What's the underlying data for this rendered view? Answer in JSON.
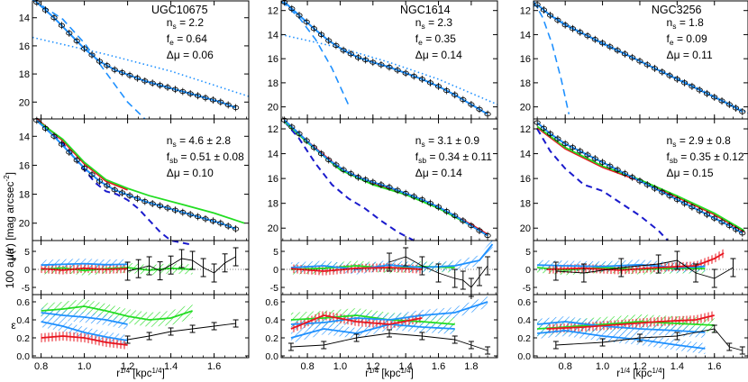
{
  "figure": {
    "ylabel_main": "μ(r)  [mag arcsec",
    "ylabel_main_sup": "-2",
    "ylabel_main_end": "]",
    "ylabel_a4_prefix": "100 a",
    "ylabel_a4_sub": "4",
    "ylabel_a4_suffix": "/a",
    "ylabel_eps": "ε",
    "xlabel_prefix": "r",
    "xlabel_sup": "1/4",
    "xlabel_mid": " [kpc",
    "xlabel_sup2": "1/4",
    "xlabel_end": "]"
  },
  "colors": {
    "data": "#000000",
    "fit": "#1e90ff",
    "sersic": "#1e90ff",
    "model_blue": "#1e90ff",
    "model_red": "#e8141e",
    "model_green": "#22dd22",
    "model_navy": "#1a1acc"
  },
  "chart_data": [
    {
      "type": "line",
      "galaxy": "UGC10675",
      "top_stats": [
        {
          "key": "n",
          "sub": "s",
          "val": " = 2.2"
        },
        {
          "key": "f",
          "sub": "e",
          "val": " = 0.64"
        },
        {
          "key": "Δμ",
          "sub": "",
          "val": " = 0.06"
        }
      ],
      "mid_stats": [
        {
          "key": "n",
          "sub": "s",
          "val": " = 4.6 ± 2.8"
        },
        {
          "key": "f",
          "sub": "sb",
          "val": " = 0.51 ± 0.08"
        },
        {
          "key": "Δμ",
          "sub": "",
          "val": " = 0.10"
        }
      ],
      "xlim": [
        0.76,
        1.76
      ],
      "xticks": [
        {
          "v": 0.8,
          "t": "0.8"
        },
        {
          "v": 1.0,
          "t": "1.0"
        },
        {
          "v": 1.2,
          "t": "1.2"
        },
        {
          "v": 1.4,
          "t": "1.4"
        },
        {
          "v": 1.6,
          "t": "1.6"
        }
      ],
      "ylim_mu": [
        21.2,
        12.8
      ],
      "yticks_mu": [
        {
          "v": 14,
          "t": "14"
        },
        {
          "v": 16,
          "t": "16"
        },
        {
          "v": 18,
          "t": "18"
        },
        {
          "v": 20,
          "t": "20"
        }
      ],
      "profile": {
        "x": [
          0.78,
          0.86,
          0.93,
          1.0,
          1.07,
          1.14,
          1.21,
          1.28,
          1.35,
          1.42,
          1.49,
          1.56,
          1.63,
          1.7
        ],
        "y": [
          12.9,
          14.0,
          15.1,
          16.2,
          17.1,
          17.7,
          18.1,
          18.5,
          18.8,
          19.1,
          19.4,
          19.7,
          20.0,
          20.4
        ]
      },
      "disk": {
        "x": [
          0.76,
          1.1,
          1.4,
          1.76
        ],
        "y": [
          15.4,
          16.6,
          17.8,
          19.6
        ]
      },
      "bulge": {
        "x": [
          0.76,
          0.9,
          1.0,
          1.1,
          1.2,
          1.28
        ],
        "y": [
          12.7,
          14.1,
          15.8,
          17.9,
          20.0,
          21.2
        ]
      },
      "mid_models": {
        "green": {
          "x": [
            0.78,
            0.9,
            1.0,
            1.1,
            1.2,
            1.3,
            1.45,
            1.6,
            1.74
          ],
          "y": [
            12.9,
            14.2,
            15.8,
            17.0,
            17.6,
            18.1,
            18.7,
            19.3,
            20.0
          ]
        },
        "red": {
          "x": [
            0.78,
            0.9,
            1.0,
            1.1,
            1.2
          ],
          "y": [
            12.8,
            14.3,
            15.9,
            17.1,
            17.7
          ]
        },
        "navy": {
          "x": [
            0.78,
            0.9,
            1.0,
            1.05,
            1.1,
            1.15,
            1.2,
            1.25,
            1.3,
            1.35,
            1.4,
            1.5
          ],
          "y": [
            12.9,
            14.5,
            16.3,
            17.2,
            17.8,
            18.0,
            18.4,
            19.0,
            19.8,
            20.6,
            21.2,
            21.5
          ]
        }
      },
      "a4": {
        "blue": {
          "x": [
            0.8,
            0.9,
            1.0,
            1.1,
            1.2
          ],
          "y": [
            1.2,
            1.4,
            1.6,
            1.3,
            1.4
          ]
        },
        "green": {
          "x": [
            0.8,
            0.9,
            1.0,
            1.1,
            1.2,
            1.3,
            1.4,
            1.5
          ],
          "y": [
            0.0,
            0.4,
            -0.3,
            0.2,
            0.5,
            -0.2,
            0.3,
            0.0
          ]
        },
        "red": {
          "x": [
            0.8,
            0.9,
            1.0,
            1.1,
            1.2
          ],
          "y": [
            0.2,
            -0.2,
            0.3,
            0.0,
            0.2
          ]
        },
        "data": {
          "x": [
            1.2,
            1.25,
            1.3,
            1.35,
            1.4,
            1.45,
            1.5,
            1.55,
            1.6,
            1.65,
            1.7
          ],
          "y": [
            -0.5,
            0.2,
            1.0,
            -0.4,
            1.2,
            3.0,
            2.5,
            0.5,
            -1.0,
            1.8,
            3.5
          ]
        }
      },
      "eps": {
        "blue": {
          "x": [
            0.8,
            0.9,
            1.0,
            1.1,
            1.2
          ],
          "y": [
            0.38,
            0.33,
            0.26,
            0.21,
            0.17
          ]
        },
        "blue2": {
          "x": [
            0.8,
            0.9,
            1.0,
            1.1,
            1.2
          ],
          "y": [
            0.48,
            0.45,
            0.43,
            0.4,
            0.35
          ]
        },
        "green": {
          "x": [
            0.8,
            0.9,
            1.0,
            1.1,
            1.2,
            1.3,
            1.4,
            1.5
          ],
          "y": [
            0.5,
            0.52,
            0.55,
            0.5,
            0.44,
            0.4,
            0.42,
            0.5
          ]
        },
        "red": {
          "x": [
            0.8,
            0.9,
            1.0,
            1.1,
            1.2
          ],
          "y": [
            0.2,
            0.22,
            0.2,
            0.15,
            0.12
          ]
        },
        "data": {
          "x": [
            1.2,
            1.3,
            1.4,
            1.5,
            1.6,
            1.7
          ],
          "y": [
            0.18,
            0.22,
            0.27,
            0.3,
            0.33,
            0.36
          ]
        }
      }
    },
    {
      "type": "line",
      "galaxy": "NGC1614",
      "top_stats": [
        {
          "key": "n",
          "sub": "s",
          "val": " = 2.3"
        },
        {
          "key": "f",
          "sub": "e",
          "val": " = 0.35"
        },
        {
          "key": "Δμ",
          "sub": "",
          "val": " = 0.14"
        }
      ],
      "mid_stats": [
        {
          "key": "n",
          "sub": "s",
          "val": " = 3.1 ± 0.9"
        },
        {
          "key": "f",
          "sub": "sb",
          "val": " = 0.34 ± 0.11"
        },
        {
          "key": "Δμ",
          "sub": "",
          "val": " = 0.14"
        }
      ],
      "xlim": [
        0.64,
        1.96
      ],
      "xticks": [
        {
          "v": 0.8,
          "t": "0.8"
        },
        {
          "v": 1.0,
          "t": "1.0"
        },
        {
          "v": 1.2,
          "t": "1.2"
        },
        {
          "v": 1.4,
          "t": "1.4"
        },
        {
          "v": 1.6,
          "t": "1.6"
        },
        {
          "v": 1.8,
          "t": "1.8"
        }
      ],
      "ylim_mu": [
        21.0,
        11.2
      ],
      "yticks_mu": [
        {
          "v": 12,
          "t": "12"
        },
        {
          "v": 14,
          "t": "14"
        },
        {
          "v": 16,
          "t": "16"
        },
        {
          "v": 18,
          "t": "18"
        },
        {
          "v": 20,
          "t": "20"
        }
      ],
      "profile": {
        "x": [
          0.66,
          0.75,
          0.84,
          0.93,
          1.02,
          1.11,
          1.2,
          1.3,
          1.4,
          1.5,
          1.6,
          1.7,
          1.8,
          1.9
        ],
        "y": [
          11.3,
          12.4,
          13.5,
          14.5,
          15.3,
          15.9,
          16.3,
          16.7,
          17.2,
          17.7,
          18.3,
          19.0,
          19.8,
          20.6
        ]
      },
      "disk": {
        "x": [
          0.64,
          1.0,
          1.3,
          1.6,
          1.96
        ],
        "y": [
          14.0,
          15.1,
          16.3,
          17.7,
          19.8
        ]
      },
      "bulge": {
        "x": [
          0.64,
          0.75,
          0.85,
          0.95,
          1.05
        ],
        "y": [
          11.2,
          12.6,
          14.4,
          16.8,
          19.8
        ]
      },
      "mid_models": {
        "red": {
          "x": [
            0.66,
            0.8,
            1.0,
            1.2,
            1.4,
            1.6,
            1.8,
            1.9
          ],
          "y": [
            11.3,
            13.0,
            15.2,
            16.4,
            17.2,
            18.3,
            19.7,
            20.5
          ]
        },
        "green": {
          "x": [
            0.66,
            0.8,
            1.0,
            1.2,
            1.4,
            1.6,
            1.8,
            1.9
          ],
          "y": [
            11.4,
            13.1,
            15.3,
            16.5,
            17.3,
            18.4,
            19.8,
            20.6
          ]
        },
        "navy": {
          "x": [
            0.66,
            0.75,
            0.85,
            0.95,
            1.05,
            1.15,
            1.25,
            1.35,
            1.45
          ],
          "y": [
            11.4,
            12.8,
            14.8,
            16.5,
            17.6,
            18.4,
            19.4,
            20.3,
            21.0
          ]
        }
      },
      "a4": {
        "blue": {
          "x": [
            0.7,
            0.9,
            1.1,
            1.3,
            1.5,
            1.7,
            1.85,
            1.93
          ],
          "y": [
            0.5,
            1.0,
            0.0,
            1.2,
            0.5,
            1.0,
            2.5,
            7.0
          ]
        },
        "green": {
          "x": [
            0.7,
            0.9,
            1.1,
            1.3,
            1.5,
            1.7
          ],
          "y": [
            0.0,
            0.3,
            1.0,
            0.3,
            0.8,
            0.5
          ]
        },
        "red": {
          "x": [
            0.7,
            0.9,
            1.1,
            1.3,
            1.5
          ],
          "y": [
            0.2,
            -0.5,
            0.3,
            0.5,
            0.0
          ]
        },
        "data": {
          "x": [
            1.3,
            1.4,
            1.5,
            1.6,
            1.7,
            1.75,
            1.8,
            1.85,
            1.9
          ],
          "y": [
            2.0,
            3.5,
            1.0,
            -1.0,
            -2.5,
            -3.0,
            -5.0,
            -2.0,
            1.0
          ]
        }
      },
      "eps": {
        "blue": {
          "x": [
            0.7,
            0.9,
            1.1,
            1.3,
            1.5,
            1.7,
            1.9
          ],
          "y": [
            0.35,
            0.37,
            0.42,
            0.4,
            0.45,
            0.48,
            0.6
          ]
        },
        "blue2": {
          "x": [
            0.7,
            0.9,
            1.1,
            1.3,
            1.5,
            1.7
          ],
          "y": [
            0.2,
            0.3,
            0.25,
            0.35,
            0.32,
            0.3
          ]
        },
        "green": {
          "x": [
            0.7,
            0.9,
            1.1,
            1.3,
            1.5,
            1.7
          ],
          "y": [
            0.4,
            0.42,
            0.45,
            0.4,
            0.38,
            0.35
          ]
        },
        "red": {
          "x": [
            0.7,
            0.9,
            1.1,
            1.3,
            1.5
          ],
          "y": [
            0.3,
            0.45,
            0.38,
            0.35,
            0.42
          ]
        },
        "data": {
          "x": [
            0.7,
            0.9,
            1.1,
            1.3,
            1.5,
            1.7,
            1.8,
            1.9
          ],
          "y": [
            0.1,
            0.12,
            0.2,
            0.25,
            0.22,
            0.18,
            0.12,
            0.06
          ]
        }
      }
    },
    {
      "type": "line",
      "galaxy": "NGC3256",
      "top_stats": [
        {
          "key": "n",
          "sub": "s",
          "val": " = 1.8"
        },
        {
          "key": "f",
          "sub": "e",
          "val": " = 0.09"
        },
        {
          "key": "Δμ",
          "sub": "",
          "val": " = 0.11"
        }
      ],
      "mid_stats": [
        {
          "key": "n",
          "sub": "s",
          "val": " = 2.9 ± 0.8"
        },
        {
          "key": "f",
          "sub": "sb",
          "val": " = 0.35 ± 0.12"
        },
        {
          "key": "Δμ",
          "sub": "",
          "val": " = 0.15"
        }
      ],
      "xlim": [
        0.63,
        1.78
      ],
      "xticks": [
        {
          "v": 0.8,
          "t": "0.8"
        },
        {
          "v": 1.0,
          "t": "1.0"
        },
        {
          "v": 1.2,
          "t": "1.2"
        },
        {
          "v": 1.4,
          "t": "1.4"
        },
        {
          "v": 1.6,
          "t": "1.6"
        }
      ],
      "ylim_mu": [
        21.0,
        11.2
      ],
      "yticks_mu": [
        {
          "v": 12,
          "t": "12"
        },
        {
          "v": 14,
          "t": "14"
        },
        {
          "v": 16,
          "t": "16"
        },
        {
          "v": 18,
          "t": "18"
        },
        {
          "v": 20,
          "t": "20"
        }
      ],
      "profile": {
        "x": [
          0.65,
          0.72,
          0.8,
          0.88,
          0.96,
          1.04,
          1.12,
          1.2,
          1.28,
          1.36,
          1.44,
          1.52,
          1.6,
          1.68,
          1.75
        ],
        "y": [
          11.5,
          12.4,
          13.2,
          13.8,
          14.4,
          15.0,
          15.6,
          16.2,
          16.8,
          17.4,
          18.0,
          18.6,
          19.2,
          19.8,
          20.4
        ]
      },
      "disk": {
        "x": [
          0.63,
          1.0,
          1.4,
          1.78
        ],
        "y": [
          11.6,
          14.8,
          17.6,
          20.5
        ]
      },
      "bulge": {
        "x": [
          0.63,
          0.68,
          0.73,
          0.78,
          0.82
        ],
        "y": [
          11.2,
          12.6,
          14.8,
          17.8,
          20.6
        ]
      },
      "mid_models": {
        "green": {
          "x": [
            0.65,
            0.8,
            1.0,
            1.2,
            1.4,
            1.6,
            1.76
          ],
          "y": [
            11.8,
            13.5,
            15.0,
            16.1,
            17.4,
            18.8,
            20.2
          ]
        },
        "red": {
          "x": [
            0.65,
            0.8,
            1.0,
            1.2,
            1.4,
            1.6,
            1.76
          ],
          "y": [
            11.9,
            13.6,
            15.1,
            16.2,
            17.5,
            18.9,
            20.3
          ]
        },
        "navy": {
          "x": [
            0.65,
            0.72,
            0.8,
            0.9,
            1.0,
            1.1,
            1.2,
            1.3,
            1.35
          ],
          "y": [
            12.0,
            13.8,
            15.2,
            16.5,
            17.0,
            18.0,
            19.0,
            20.2,
            21.0
          ]
        }
      },
      "a4": {
        "blue": {
          "x": [
            0.65,
            0.8,
            1.0,
            1.2,
            1.4,
            1.55
          ],
          "y": [
            1.2,
            1.0,
            0.8,
            1.3,
            0.5,
            0.8
          ]
        },
        "green": {
          "x": [
            0.65,
            0.8,
            1.0,
            1.2,
            1.4,
            1.55
          ],
          "y": [
            0.5,
            -0.2,
            0.5,
            0.0,
            0.3,
            0.2
          ]
        },
        "red": {
          "x": [
            0.7,
            0.9,
            1.1,
            1.3,
            1.5,
            1.6,
            1.65
          ],
          "y": [
            0.0,
            0.3,
            -0.2,
            0.5,
            1.0,
            3.0,
            4.5
          ]
        },
        "data": {
          "x": [
            0.75,
            0.9,
            1.1,
            1.3,
            1.4,
            1.5,
            1.6,
            1.7
          ],
          "y": [
            -0.5,
            -1.0,
            0.5,
            1.5,
            2.5,
            -1.0,
            -2.5,
            0.5
          ]
        }
      },
      "eps": {
        "blue": {
          "x": [
            0.65,
            0.8,
            1.0,
            1.2,
            1.4,
            1.55
          ],
          "y": [
            0.25,
            0.28,
            0.22,
            0.18,
            0.12,
            0.08
          ]
        },
        "blue2": {
          "x": [
            0.65,
            0.8,
            1.0,
            1.2,
            1.4,
            1.55
          ],
          "y": [
            0.35,
            0.38,
            0.33,
            0.3,
            0.28,
            0.26
          ]
        },
        "green": {
          "x": [
            0.65,
            0.8,
            1.0,
            1.2,
            1.4,
            1.6
          ],
          "y": [
            0.3,
            0.32,
            0.35,
            0.38,
            0.36,
            0.34
          ]
        },
        "red": {
          "x": [
            0.7,
            0.9,
            1.1,
            1.3,
            1.5,
            1.6
          ],
          "y": [
            0.3,
            0.32,
            0.35,
            0.38,
            0.4,
            0.45
          ]
        },
        "data": {
          "x": [
            0.75,
            1.0,
            1.2,
            1.4,
            1.6,
            1.68,
            1.75
          ],
          "y": [
            0.12,
            0.15,
            0.2,
            0.22,
            0.3,
            0.1,
            0.06
          ]
        }
      }
    }
  ]
}
